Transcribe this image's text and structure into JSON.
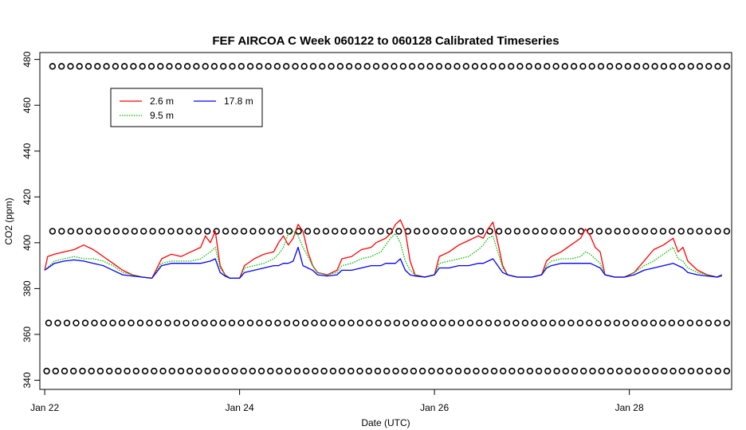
{
  "chart_data": {
    "type": "line",
    "title": "FEF AIRCOA C  Week 060122 to 060128  Calibrated Timeseries",
    "xlabel": "Date (UTC)",
    "ylabel": "CO2 (ppm)",
    "xlim": [
      -0.05,
      7.05
    ],
    "ylim": [
      336,
      483
    ],
    "x_ticks": [
      {
        "value": 0,
        "label": "Jan 22"
      },
      {
        "value": 2,
        "label": "Jan 24"
      },
      {
        "value": 4,
        "label": "Jan 26"
      },
      {
        "value": 6,
        "label": "Jan 28"
      }
    ],
    "y_ticks": [
      340,
      360,
      380,
      400,
      420,
      440,
      460,
      480
    ],
    "legend_placement": "top-left",
    "grid": false,
    "colors": {
      "2.6 m": "#ff0000",
      "9.5 m": "#00c000",
      "17.8 m": "#0000ff"
    },
    "series": [
      {
        "name": "2.6 m",
        "color": "#ff0000",
        "style": "solid",
        "points": [
          [
            0.0,
            388
          ],
          [
            0.03,
            394
          ],
          [
            0.1,
            395
          ],
          [
            0.2,
            396
          ],
          [
            0.3,
            397
          ],
          [
            0.4,
            399
          ],
          [
            0.5,
            397
          ],
          [
            0.6,
            394
          ],
          [
            0.7,
            391
          ],
          [
            0.8,
            388
          ],
          [
            0.9,
            386
          ],
          [
            1.0,
            385
          ],
          [
            1.1,
            384.5
          ],
          [
            1.2,
            393
          ],
          [
            1.3,
            395
          ],
          [
            1.4,
            394
          ],
          [
            1.5,
            396
          ],
          [
            1.6,
            398
          ],
          [
            1.65,
            403
          ],
          [
            1.7,
            400
          ],
          [
            1.75,
            405
          ],
          [
            1.8,
            390
          ],
          [
            1.85,
            386
          ],
          [
            1.9,
            384.5
          ],
          [
            2.0,
            384.5
          ],
          [
            2.05,
            390
          ],
          [
            2.15,
            393
          ],
          [
            2.25,
            395
          ],
          [
            2.35,
            396
          ],
          [
            2.4,
            400
          ],
          [
            2.45,
            403
          ],
          [
            2.5,
            399
          ],
          [
            2.55,
            402
          ],
          [
            2.6,
            408
          ],
          [
            2.65,
            405
          ],
          [
            2.7,
            396
          ],
          [
            2.75,
            390
          ],
          [
            2.8,
            387
          ],
          [
            2.9,
            386
          ],
          [
            3.0,
            388
          ],
          [
            3.05,
            393
          ],
          [
            3.15,
            394
          ],
          [
            3.25,
            397
          ],
          [
            3.35,
            398
          ],
          [
            3.4,
            400
          ],
          [
            3.5,
            402
          ],
          [
            3.55,
            404
          ],
          [
            3.6,
            408
          ],
          [
            3.65,
            410
          ],
          [
            3.7,
            405
          ],
          [
            3.75,
            392
          ],
          [
            3.8,
            386
          ],
          [
            3.9,
            385
          ],
          [
            4.0,
            386
          ],
          [
            4.05,
            394
          ],
          [
            4.15,
            396
          ],
          [
            4.25,
            399
          ],
          [
            4.35,
            401
          ],
          [
            4.45,
            403
          ],
          [
            4.5,
            402
          ],
          [
            4.55,
            406
          ],
          [
            4.6,
            409
          ],
          [
            4.65,
            400
          ],
          [
            4.7,
            390
          ],
          [
            4.75,
            386
          ],
          [
            4.85,
            385
          ],
          [
            5.0,
            385
          ],
          [
            5.1,
            386
          ],
          [
            5.15,
            392
          ],
          [
            5.2,
            394
          ],
          [
            5.3,
            396
          ],
          [
            5.4,
            399
          ],
          [
            5.5,
            402
          ],
          [
            5.55,
            406
          ],
          [
            5.6,
            403
          ],
          [
            5.65,
            398
          ],
          [
            5.7,
            396
          ],
          [
            5.75,
            386
          ],
          [
            5.85,
            385
          ],
          [
            5.95,
            385
          ],
          [
            6.05,
            387
          ],
          [
            6.15,
            392
          ],
          [
            6.25,
            397
          ],
          [
            6.35,
            399
          ],
          [
            6.45,
            402
          ],
          [
            6.5,
            396
          ],
          [
            6.55,
            398
          ],
          [
            6.6,
            392
          ],
          [
            6.7,
            388
          ],
          [
            6.8,
            386
          ],
          [
            6.9,
            385
          ],
          [
            6.95,
            385.5
          ]
        ]
      },
      {
        "name": "9.5 m",
        "color": "#00c000",
        "style": "dotted",
        "points": [
          [
            0.0,
            388
          ],
          [
            0.1,
            392
          ],
          [
            0.2,
            393
          ],
          [
            0.3,
            394
          ],
          [
            0.4,
            393
          ],
          [
            0.5,
            393
          ],
          [
            0.6,
            392
          ],
          [
            0.7,
            390
          ],
          [
            0.8,
            387
          ],
          [
            0.9,
            386
          ],
          [
            1.0,
            385
          ],
          [
            1.1,
            384.5
          ],
          [
            1.2,
            391
          ],
          [
            1.3,
            392
          ],
          [
            1.4,
            392
          ],
          [
            1.5,
            392
          ],
          [
            1.6,
            393
          ],
          [
            1.7,
            396
          ],
          [
            1.75,
            398
          ],
          [
            1.8,
            389
          ],
          [
            1.85,
            386
          ],
          [
            1.9,
            384.5
          ],
          [
            2.0,
            384.5
          ],
          [
            2.05,
            389
          ],
          [
            2.15,
            390
          ],
          [
            2.25,
            391
          ],
          [
            2.35,
            393
          ],
          [
            2.4,
            395
          ],
          [
            2.45,
            398
          ],
          [
            2.5,
            404
          ],
          [
            2.55,
            405
          ],
          [
            2.6,
            403
          ],
          [
            2.65,
            398
          ],
          [
            2.7,
            394
          ],
          [
            2.75,
            390
          ],
          [
            2.8,
            387
          ],
          [
            2.9,
            386
          ],
          [
            3.0,
            387
          ],
          [
            3.05,
            390
          ],
          [
            3.15,
            391
          ],
          [
            3.25,
            393
          ],
          [
            3.35,
            394
          ],
          [
            3.45,
            396
          ],
          [
            3.5,
            399
          ],
          [
            3.55,
            402
          ],
          [
            3.6,
            404
          ],
          [
            3.65,
            400
          ],
          [
            3.7,
            392
          ],
          [
            3.75,
            388
          ],
          [
            3.8,
            386
          ],
          [
            3.9,
            385
          ],
          [
            4.0,
            386
          ],
          [
            4.05,
            391
          ],
          [
            4.15,
            392
          ],
          [
            4.25,
            393
          ],
          [
            4.35,
            394
          ],
          [
            4.45,
            397
          ],
          [
            4.5,
            399
          ],
          [
            4.55,
            402
          ],
          [
            4.6,
            403
          ],
          [
            4.65,
            396
          ],
          [
            4.7,
            389
          ],
          [
            4.75,
            386
          ],
          [
            4.85,
            385
          ],
          [
            5.0,
            385
          ],
          [
            5.1,
            386
          ],
          [
            5.15,
            390
          ],
          [
            5.2,
            392
          ],
          [
            5.3,
            393
          ],
          [
            5.4,
            393
          ],
          [
            5.5,
            394
          ],
          [
            5.55,
            396
          ],
          [
            5.6,
            395
          ],
          [
            5.65,
            393
          ],
          [
            5.7,
            391
          ],
          [
            5.75,
            386
          ],
          [
            5.85,
            385
          ],
          [
            5.95,
            385
          ],
          [
            6.05,
            387
          ],
          [
            6.15,
            390
          ],
          [
            6.25,
            392
          ],
          [
            6.35,
            395
          ],
          [
            6.45,
            398
          ],
          [
            6.5,
            393
          ],
          [
            6.55,
            392
          ],
          [
            6.6,
            389
          ],
          [
            6.7,
            387
          ],
          [
            6.8,
            386
          ],
          [
            6.9,
            385
          ],
          [
            6.95,
            385.5
          ]
        ]
      },
      {
        "name": "17.8 m",
        "color": "#0000ff",
        "style": "solid",
        "points": [
          [
            0.0,
            388
          ],
          [
            0.1,
            391
          ],
          [
            0.2,
            392
          ],
          [
            0.3,
            392.5
          ],
          [
            0.4,
            392
          ],
          [
            0.5,
            391
          ],
          [
            0.6,
            390
          ],
          [
            0.7,
            388
          ],
          [
            0.8,
            386
          ],
          [
            0.9,
            385.5
          ],
          [
            1.0,
            385
          ],
          [
            1.1,
            384.5
          ],
          [
            1.2,
            390
          ],
          [
            1.3,
            391
          ],
          [
            1.4,
            391
          ],
          [
            1.5,
            391
          ],
          [
            1.6,
            391
          ],
          [
            1.7,
            392
          ],
          [
            1.75,
            393
          ],
          [
            1.8,
            387
          ],
          [
            1.85,
            385.5
          ],
          [
            1.9,
            384.5
          ],
          [
            2.0,
            384.5
          ],
          [
            2.05,
            387
          ],
          [
            2.15,
            388
          ],
          [
            2.25,
            389
          ],
          [
            2.35,
            390
          ],
          [
            2.4,
            390
          ],
          [
            2.45,
            391
          ],
          [
            2.5,
            391
          ],
          [
            2.55,
            392
          ],
          [
            2.6,
            398
          ],
          [
            2.65,
            390
          ],
          [
            2.7,
            389
          ],
          [
            2.75,
            388
          ],
          [
            2.8,
            386
          ],
          [
            2.9,
            385.5
          ],
          [
            3.0,
            386
          ],
          [
            3.05,
            388
          ],
          [
            3.15,
            388
          ],
          [
            3.25,
            389
          ],
          [
            3.35,
            390
          ],
          [
            3.45,
            390
          ],
          [
            3.5,
            391
          ],
          [
            3.55,
            391
          ],
          [
            3.6,
            391
          ],
          [
            3.65,
            393
          ],
          [
            3.7,
            388
          ],
          [
            3.75,
            386
          ],
          [
            3.8,
            385.5
          ],
          [
            3.9,
            385
          ],
          [
            4.0,
            386
          ],
          [
            4.05,
            389
          ],
          [
            4.15,
            389
          ],
          [
            4.25,
            390
          ],
          [
            4.35,
            390
          ],
          [
            4.45,
            391
          ],
          [
            4.5,
            391
          ],
          [
            4.55,
            392
          ],
          [
            4.6,
            393
          ],
          [
            4.65,
            390
          ],
          [
            4.7,
            387
          ],
          [
            4.75,
            386
          ],
          [
            4.85,
            385
          ],
          [
            5.0,
            385
          ],
          [
            5.1,
            386
          ],
          [
            5.15,
            389
          ],
          [
            5.2,
            390
          ],
          [
            5.3,
            391
          ],
          [
            5.4,
            391
          ],
          [
            5.5,
            391
          ],
          [
            5.55,
            391
          ],
          [
            5.6,
            391
          ],
          [
            5.65,
            390
          ],
          [
            5.7,
            389
          ],
          [
            5.75,
            386
          ],
          [
            5.85,
            385
          ],
          [
            5.95,
            385
          ],
          [
            6.05,
            386
          ],
          [
            6.15,
            388
          ],
          [
            6.25,
            389
          ],
          [
            6.35,
            390
          ],
          [
            6.45,
            391
          ],
          [
            6.5,
            390
          ],
          [
            6.55,
            389
          ],
          [
            6.6,
            387
          ],
          [
            6.7,
            386
          ],
          [
            6.8,
            385.5
          ],
          [
            6.9,
            385
          ],
          [
            6.95,
            386
          ]
        ]
      }
    ],
    "reference_points": [
      {
        "name": "cal-477",
        "y": 477,
        "x_start": 0.08,
        "x_end": 7.0,
        "count": 76
      },
      {
        "name": "cal-405",
        "y": 405,
        "x_start": 0.08,
        "x_end": 7.0,
        "count": 75
      },
      {
        "name": "cal-365",
        "y": 365,
        "x_start": 0.04,
        "x_end": 7.0,
        "count": 75
      },
      {
        "name": "cal-344",
        "y": 344,
        "x_start": 0.02,
        "x_end": 7.0,
        "count": 77
      }
    ]
  }
}
